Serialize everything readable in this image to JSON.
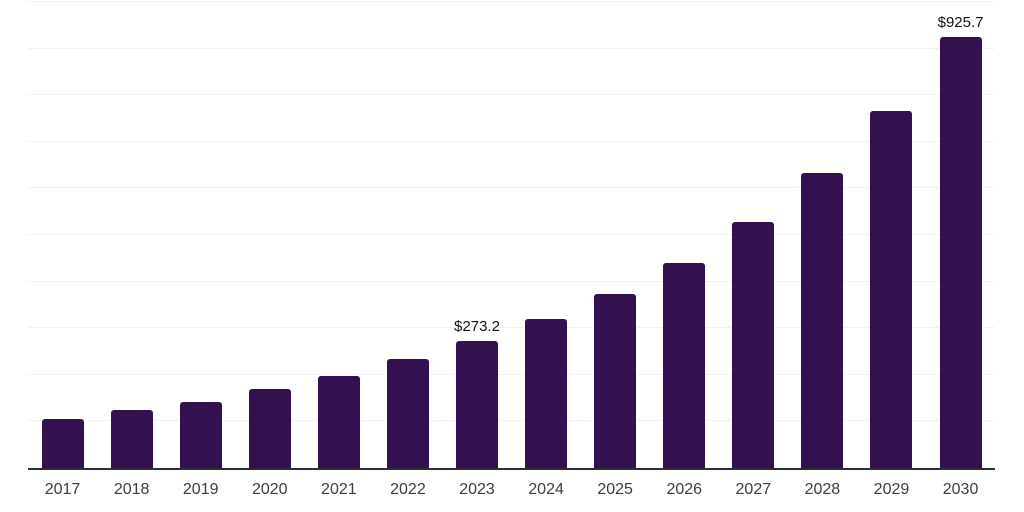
{
  "chart_data": {
    "type": "bar",
    "title": "",
    "xlabel": "",
    "ylabel": "",
    "categories": [
      "2017",
      "2018",
      "2019",
      "2020",
      "2021",
      "2022",
      "2023",
      "2024",
      "2025",
      "2026",
      "2027",
      "2028",
      "2029",
      "2030"
    ],
    "values": [
      105,
      124,
      141,
      169,
      197,
      235,
      273.2,
      319,
      373,
      441,
      527,
      634,
      766,
      925.7
    ],
    "bar_labels": [
      "",
      "",
      "",
      "",
      "",
      "",
      "$273.2",
      "",
      "",
      "",
      "",
      "",
      "",
      "$925.7"
    ],
    "labeled_points": [
      {
        "category": "2023",
        "label": "$273.2"
      },
      {
        "category": "2030",
        "label": "$925.7"
      }
    ],
    "ylim": [
      0,
      1000
    ],
    "grid_step": 100,
    "grid": "horizontal",
    "legend": "none",
    "colors": {
      "bar": "#331150",
      "gridline": "#f2f2f4",
      "axis_line": "#2f2f2f",
      "tick_label": "#3d3d3d",
      "data_label": "#111111",
      "background": "#ffffff"
    }
  }
}
